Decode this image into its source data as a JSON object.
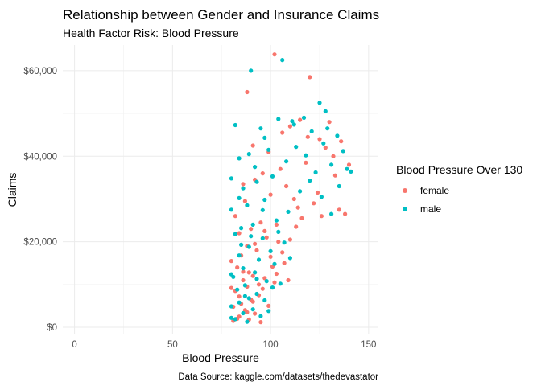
{
  "chart_data": {
    "type": "scatter",
    "title": "Relationship between Gender and Insurance Claims",
    "subtitle": "Health Factor Risk: Blood Pressure",
    "xlabel": "Blood Pressure",
    "ylabel": "Claims",
    "caption": "Data Source: kaggle.com/datasets/thedevastator",
    "xlim": [
      -6,
      155
    ],
    "ylim": [
      -1500,
      66000
    ],
    "x_ticks": [
      0,
      50,
      100,
      150
    ],
    "y_ticks": [
      0,
      20000,
      40000,
      60000
    ],
    "y_tick_labels": [
      "$0",
      "$20,000",
      "$40,000",
      "$60,000"
    ],
    "grid": true,
    "legend": {
      "title": "Blood Pressure Over 130",
      "position": "right"
    },
    "series": [
      {
        "name": "female",
        "color": "#F8766D",
        "points": [
          [
            88,
            55000
          ],
          [
            102,
            63800
          ],
          [
            120,
            58500
          ],
          [
            130,
            48000
          ],
          [
            115,
            48500
          ],
          [
            110,
            47000
          ],
          [
            125,
            44000
          ],
          [
            128,
            42000
          ],
          [
            132,
            40000
          ],
          [
            118,
            38500
          ],
          [
            105,
            37000
          ],
          [
            96,
            36000
          ],
          [
            92,
            34500
          ],
          [
            108,
            33000
          ],
          [
            100,
            31000
          ],
          [
            86,
            33500
          ],
          [
            112,
            30000
          ],
          [
            122,
            29000
          ],
          [
            135,
            27500
          ],
          [
            138,
            26500
          ],
          [
            126,
            26000
          ],
          [
            116,
            25500
          ],
          [
            95,
            24500
          ],
          [
            90,
            23000
          ],
          [
            84,
            22000
          ],
          [
            98,
            21000
          ],
          [
            104,
            20000
          ],
          [
            88,
            19000
          ],
          [
            93,
            18000
          ],
          [
            100,
            16500
          ],
          [
            107,
            15000
          ],
          [
            83,
            14000
          ],
          [
            86,
            13000
          ],
          [
            91,
            12000
          ],
          [
            97,
            11500
          ],
          [
            102,
            10500
          ],
          [
            88,
            9500
          ],
          [
            82,
            8500
          ],
          [
            94,
            7500
          ],
          [
            90,
            6500
          ],
          [
            85,
            5500
          ],
          [
            81,
            4800
          ],
          [
            87,
            4000
          ],
          [
            92,
            3200
          ],
          [
            84,
            2500
          ],
          [
            89,
            1800
          ],
          [
            95,
            1200
          ],
          [
            99,
            5000
          ],
          [
            86,
            11000
          ],
          [
            80,
            15500
          ],
          [
            103,
            12500
          ],
          [
            109,
            11000
          ],
          [
            96,
            9000
          ],
          [
            83,
            2000
          ],
          [
            91,
            6000
          ],
          [
            88,
            3500
          ],
          [
            94,
            10000
          ],
          [
            80,
            9200
          ],
          [
            85,
            16800
          ],
          [
            92,
            19500
          ],
          [
            101,
            14200
          ],
          [
            106,
            17500
          ],
          [
            110,
            20500
          ],
          [
            113,
            23500
          ],
          [
            82,
            26000
          ],
          [
            87,
            29500
          ],
          [
            99,
            41000
          ],
          [
            91,
            42500
          ],
          [
            106,
            45500
          ],
          [
            119,
            44500
          ],
          [
            136,
            43500
          ],
          [
            140,
            38000
          ],
          [
            133,
            35500
          ],
          [
            124,
            31500
          ],
          [
            114,
            28000
          ],
          [
            103,
            24000
          ],
          [
            97,
            22500
          ],
          [
            89,
            12800
          ],
          [
            84,
            7200
          ],
          [
            81,
            1500
          ]
        ]
      },
      {
        "name": "male",
        "color": "#00BFC4",
        "points": [
          [
            90,
            60000
          ],
          [
            106,
            62500
          ],
          [
            125,
            52500
          ],
          [
            128,
            50500
          ],
          [
            117,
            49000
          ],
          [
            104,
            48700
          ],
          [
            111,
            48200
          ],
          [
            82,
            47300
          ],
          [
            95,
            46500
          ],
          [
            121,
            45800
          ],
          [
            134,
            44800
          ],
          [
            127,
            43000
          ],
          [
            113,
            42200
          ],
          [
            99,
            41500
          ],
          [
            89,
            40500
          ],
          [
            84,
            39500
          ],
          [
            108,
            38800
          ],
          [
            131,
            38000
          ],
          [
            139,
            37000
          ],
          [
            123,
            36200
          ],
          [
            101,
            35300
          ],
          [
            93,
            34000
          ],
          [
            80,
            34800
          ],
          [
            86,
            32500
          ],
          [
            115,
            31800
          ],
          [
            126,
            30500
          ],
          [
            97,
            29800
          ],
          [
            88,
            28500
          ],
          [
            80,
            27500
          ],
          [
            109,
            27000
          ],
          [
            131,
            26500
          ],
          [
            103,
            25000
          ],
          [
            91,
            24000
          ],
          [
            85,
            23200
          ],
          [
            82,
            21800
          ],
          [
            96,
            20800
          ],
          [
            107,
            19800
          ],
          [
            89,
            18800
          ],
          [
            100,
            17800
          ],
          [
            84,
            16800
          ],
          [
            94,
            15800
          ],
          [
            102,
            14800
          ],
          [
            86,
            13800
          ],
          [
            92,
            12800
          ],
          [
            81,
            11800
          ],
          [
            98,
            10800
          ],
          [
            105,
            10200
          ],
          [
            87,
            9800
          ],
          [
            83,
            8800
          ],
          [
            93,
            7800
          ],
          [
            89,
            6800
          ],
          [
            84,
            5800
          ],
          [
            80,
            4900
          ],
          [
            91,
            4200
          ],
          [
            86,
            3300
          ],
          [
            95,
            2600
          ],
          [
            82,
            1900
          ],
          [
            88,
            1300
          ],
          [
            97,
            6300
          ],
          [
            93,
            11300
          ],
          [
            80,
            12400
          ],
          [
            101,
            9300
          ],
          [
            85,
            19300
          ],
          [
            90,
            21300
          ],
          [
            104,
            22300
          ],
          [
            110,
            16200
          ],
          [
            84,
            30200
          ],
          [
            92,
            37500
          ],
          [
            118,
            40200
          ],
          [
            137,
            41200
          ],
          [
            129,
            46500
          ],
          [
            112,
            47400
          ],
          [
            97,
            44300
          ],
          [
            141,
            36400
          ],
          [
            135,
            33000
          ],
          [
            120,
            34300
          ],
          [
            96,
            27400
          ],
          [
            80,
            2200
          ],
          [
            87,
            7300
          ],
          [
            99,
            3800
          ]
        ]
      }
    ]
  }
}
